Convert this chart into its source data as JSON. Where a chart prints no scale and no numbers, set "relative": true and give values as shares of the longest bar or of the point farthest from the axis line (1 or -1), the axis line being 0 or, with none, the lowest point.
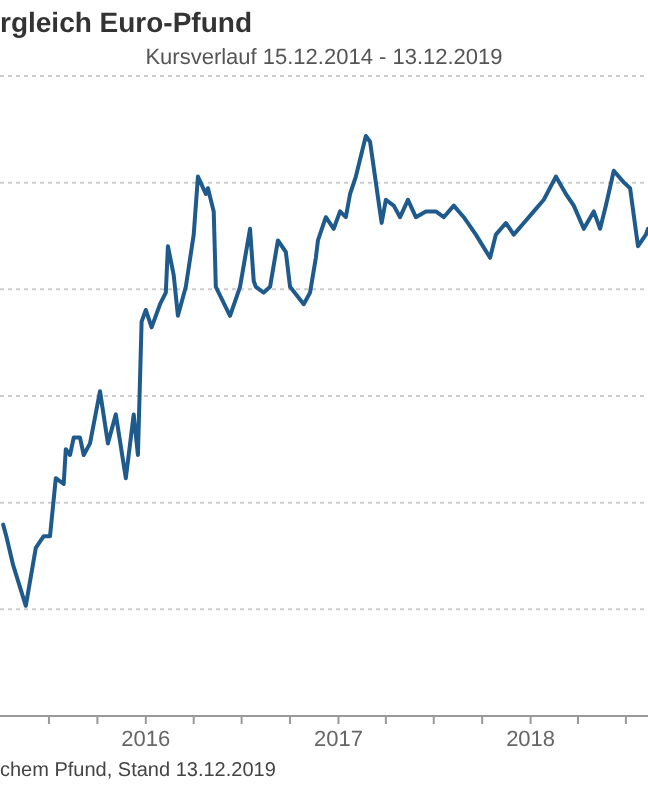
{
  "chart_data": {
    "type": "line",
    "title": "rgleich Euro-Pfund",
    "subtitle": "Kursverlauf 15.12.2014 - 13.12.2019",
    "annotations": [
      "chem Pfund, Stand 13.12.2019"
    ],
    "relative": true,
    "grid": "y",
    "marker": "none",
    "line_style": "solid",
    "xlim": [
      "2015-03-30",
      "2018-08-12"
    ],
    "xticks": [
      {
        "value": "2015-07-01",
        "label": null
      },
      {
        "value": "2015-10-01",
        "label": null
      },
      {
        "value": "2016-01-01",
        "label": "2016"
      },
      {
        "value": "2016-04-01",
        "label": null
      },
      {
        "value": "2016-07-01",
        "label": null
      },
      {
        "value": "2016-10-01",
        "label": null
      },
      {
        "value": "2017-01-01",
        "label": "2017"
      },
      {
        "value": "2017-04-01",
        "label": null
      },
      {
        "value": "2017-07-01",
        "label": null
      },
      {
        "value": "2017-10-01",
        "label": null
      },
      {
        "value": "2018-01-01",
        "label": "2018"
      },
      {
        "value": "2018-04-01",
        "label": null
      },
      {
        "value": "2018-07-01",
        "label": null
      }
    ],
    "x": [
      "2015-04-05",
      "2015-04-11",
      "2015-04-24",
      "2015-05-18",
      "2015-06-06",
      "2015-06-21",
      "2015-07-03",
      "2015-07-14",
      "2015-07-29",
      "2015-08-02",
      "2015-08-10",
      "2015-08-17",
      "2015-08-29",
      "2015-09-05",
      "2015-09-17",
      "2015-10-06",
      "2015-10-21",
      "2015-11-05",
      "2015-11-24",
      "2015-12-09",
      "2015-12-17",
      "2015-12-24",
      "2016-01-01",
      "2016-01-12",
      "2016-01-28",
      "2016-02-08",
      "2016-02-12",
      "2016-02-23",
      "2016-03-02",
      "2016-03-17",
      "2016-04-01",
      "2016-04-09",
      "2016-04-24",
      "2016-04-28",
      "2016-05-09",
      "2016-05-13",
      "2016-06-09",
      "2016-06-28",
      "2016-07-17",
      "2016-07-24",
      "2016-07-28",
      "2016-08-12",
      "2016-08-24",
      "2016-09-08",
      "2016-09-23",
      "2016-10-01",
      "2016-10-27",
      "2016-11-08",
      "2016-11-19",
      "2016-11-23",
      "2016-12-08",
      "2016-12-23",
      "2017-01-04",
      "2017-01-15",
      "2017-01-23",
      "2017-02-03",
      "2017-02-22",
      "2017-03-02",
      "2017-03-13",
      "2017-03-24",
      "2017-04-01",
      "2017-04-16",
      "2017-04-28",
      "2017-05-13",
      "2017-05-28",
      "2017-06-16",
      "2017-07-05",
      "2017-07-20",
      "2017-08-08",
      "2017-08-27",
      "2017-09-19",
      "2017-10-16",
      "2017-10-27",
      "2017-11-15",
      "2017-11-30",
      "2017-12-19",
      "2018-01-07",
      "2018-01-26",
      "2018-02-18",
      "2018-03-09",
      "2018-03-24",
      "2018-04-12",
      "2018-05-01",
      "2018-05-13",
      "2018-05-24",
      "2018-06-08",
      "2018-06-27",
      "2018-07-09",
      "2018-07-24",
      "2018-08-08",
      "2018-08-12"
    ],
    "series": [
      {
        "color": "#1f5a8c",
        "values": [
          0.33,
          0.31,
          0.26,
          0.19,
          0.29,
          0.31,
          0.31,
          0.41,
          0.4,
          0.46,
          0.45,
          0.48,
          0.48,
          0.45,
          0.47,
          0.56,
          0.47,
          0.52,
          0.41,
          0.52,
          0.45,
          0.68,
          0.7,
          0.67,
          0.71,
          0.73,
          0.81,
          0.76,
          0.69,
          0.74,
          0.83,
          0.93,
          0.9,
          0.91,
          0.87,
          0.74,
          0.69,
          0.74,
          0.84,
          0.75,
          0.74,
          0.73,
          0.74,
          0.82,
          0.8,
          0.74,
          0.71,
          0.73,
          0.79,
          0.82,
          0.86,
          0.84,
          0.87,
          0.86,
          0.9,
          0.93,
          1,
          0.99,
          0.92,
          0.85,
          0.89,
          0.88,
          0.86,
          0.89,
          0.86,
          0.87,
          0.87,
          0.86,
          0.88,
          0.86,
          0.83,
          0.79,
          0.83,
          0.85,
          0.83,
          0.85,
          0.87,
          0.89,
          0.93,
          0.9,
          0.88,
          0.84,
          0.87,
          0.84,
          0.88,
          0.94,
          0.92,
          0.91,
          0.81,
          0.83,
          0.84
        ]
      }
    ]
  }
}
